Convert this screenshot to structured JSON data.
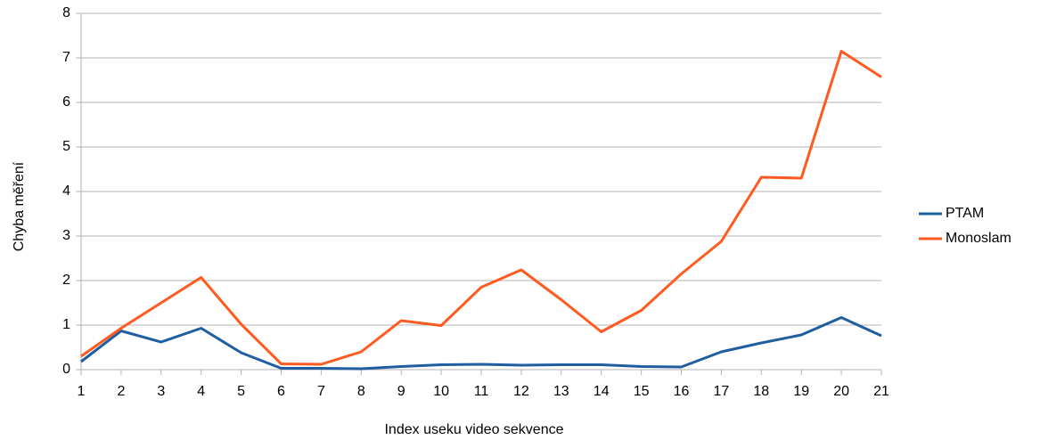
{
  "chart_data": {
    "type": "line",
    "x_label": "Index useku video sekvence",
    "y_label": "Chyba měření",
    "categories": [
      "1",
      "2",
      "3",
      "4",
      "5",
      "6",
      "7",
      "8",
      "9",
      "10",
      "11",
      "12",
      "13",
      "14",
      "15",
      "16",
      "17",
      "18",
      "19",
      "20",
      "21"
    ],
    "series": [
      {
        "name": "PTAM",
        "color": "#1f5ea0",
        "values": [
          0.18,
          0.87,
          0.62,
          0.93,
          0.38,
          0.03,
          0.03,
          0.02,
          0.07,
          0.11,
          0.12,
          0.1,
          0.11,
          0.11,
          0.07,
          0.06,
          0.4,
          0.6,
          0.78,
          1.17,
          0.76
        ]
      },
      {
        "name": "Monoslam",
        "color": "#ff5a1f",
        "values": [
          0.3,
          0.93,
          1.5,
          2.07,
          1.02,
          0.13,
          0.12,
          0.4,
          1.1,
          0.99,
          1.85,
          2.24,
          1.57,
          0.85,
          1.33,
          2.15,
          2.88,
          4.32,
          4.3,
          7.15,
          6.57
        ]
      }
    ],
    "ylim": [
      0,
      8
    ],
    "yticks": [
      0,
      1,
      2,
      3,
      4,
      5,
      6,
      7,
      8
    ],
    "grid": true,
    "legend": "right"
  }
}
